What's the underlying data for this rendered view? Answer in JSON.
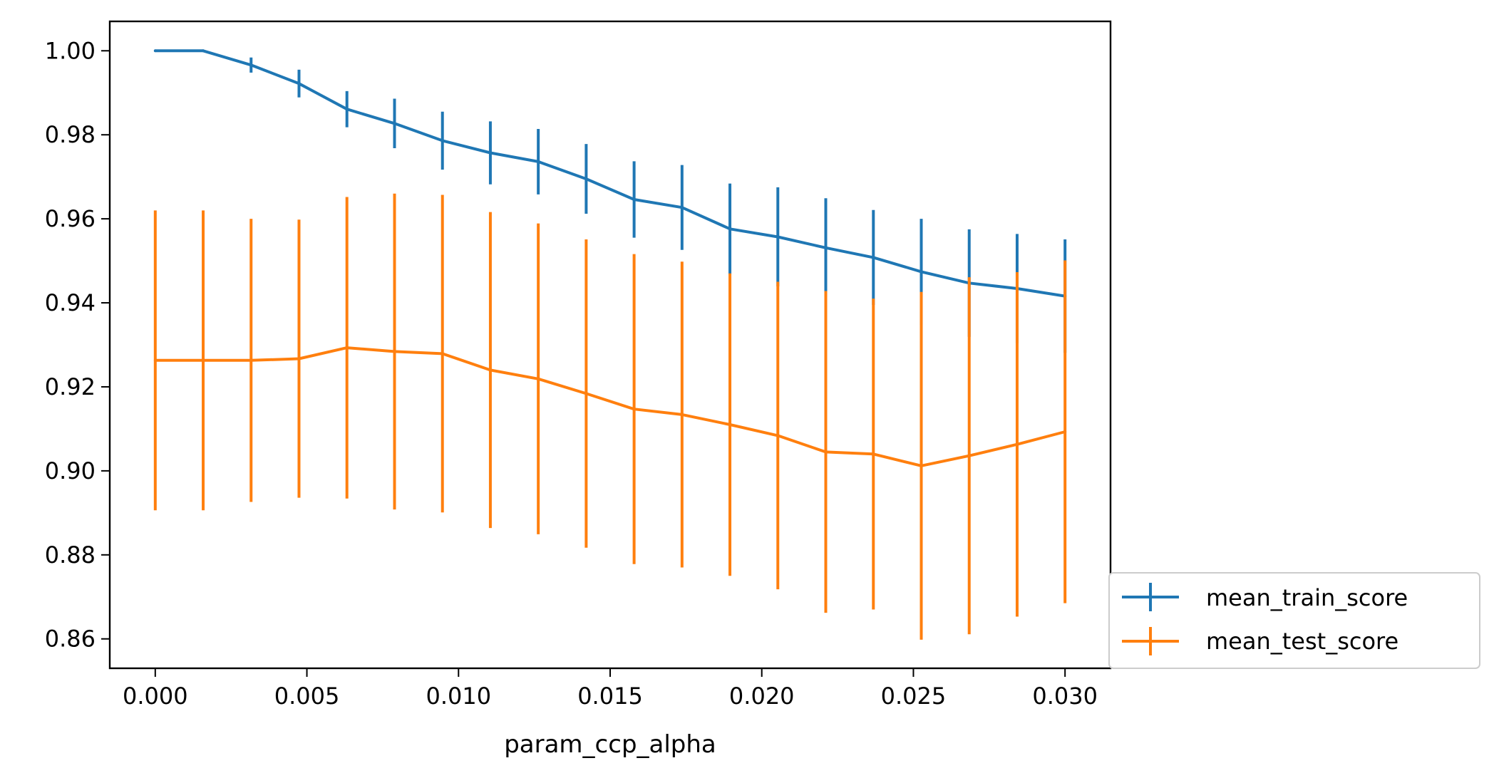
{
  "chart_data": {
    "type": "line",
    "title": "",
    "xlabel": "param_ccp_alpha",
    "ylabel": "",
    "xlim": [
      -0.0015,
      0.0315
    ],
    "ylim": [
      0.853,
      1.007
    ],
    "xticks": [
      0.0,
      0.005,
      0.01,
      0.015,
      0.02,
      0.025,
      0.03
    ],
    "xtick_labels": [
      "0.000",
      "0.005",
      "0.010",
      "0.015",
      "0.020",
      "0.025",
      "0.030"
    ],
    "yticks": [
      0.86,
      0.88,
      0.9,
      0.92,
      0.94,
      0.96,
      0.98,
      1.0
    ],
    "ytick_labels": [
      "0.86",
      "0.88",
      "0.90",
      "0.92",
      "0.94",
      "0.96",
      "0.98",
      "1.00"
    ],
    "grid": false,
    "legend_position": "outside-bottom-right",
    "x": [
      0.0,
      0.00158,
      0.00316,
      0.00474,
      0.00632,
      0.00789,
      0.00947,
      0.01105,
      0.01263,
      0.01421,
      0.01579,
      0.01737,
      0.01895,
      0.02053,
      0.02211,
      0.02368,
      0.02526,
      0.02684,
      0.02842,
      0.03
    ],
    "series": [
      {
        "name": "mean_train_score",
        "color": "#1f77b4",
        "values": [
          1.0,
          1.0,
          0.9966,
          0.9922,
          0.9861,
          0.9827,
          0.9786,
          0.9757,
          0.9736,
          0.9695,
          0.9646,
          0.9627,
          0.9576,
          0.9557,
          0.9531,
          0.9508,
          0.9474,
          0.9447,
          0.9434,
          0.9416
        ],
        "errors": [
          0.0,
          0.0,
          0.0018,
          0.0033,
          0.0043,
          0.0059,
          0.0069,
          0.0075,
          0.0078,
          0.0083,
          0.0091,
          0.0101,
          0.0108,
          0.0118,
          0.0118,
          0.0113,
          0.0126,
          0.0128,
          0.013,
          0.0135
        ]
      },
      {
        "name": "mean_test_score",
        "color": "#ff7f0e",
        "values": [
          0.9263,
          0.9263,
          0.9263,
          0.9267,
          0.9293,
          0.9284,
          0.9279,
          0.924,
          0.9219,
          0.9184,
          0.9147,
          0.9134,
          0.911,
          0.9084,
          0.9045,
          0.904,
          0.9012,
          0.9036,
          0.9063,
          0.9093
        ],
        "errors": [
          0.0357,
          0.0357,
          0.0337,
          0.0331,
          0.0359,
          0.0376,
          0.0378,
          0.0376,
          0.037,
          0.0367,
          0.0369,
          0.0364,
          0.036,
          0.0366,
          0.0383,
          0.037,
          0.0414,
          0.0425,
          0.041,
          0.0408
        ]
      }
    ]
  }
}
